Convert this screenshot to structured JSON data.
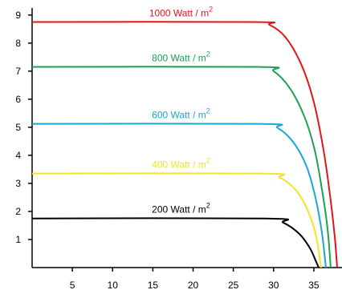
{
  "chart_data": {
    "type": "line",
    "title": "",
    "xlabel": "",
    "ylabel": "",
    "xlim": [
      0,
      38.5
    ],
    "ylim": [
      0,
      9.25
    ],
    "x_ticks": [
      5,
      10,
      15,
      20,
      25,
      30,
      35
    ],
    "y_ticks": [
      1,
      2,
      3,
      4,
      5,
      6,
      7,
      8,
      9
    ],
    "grid": false,
    "legend": "none",
    "series": [
      {
        "name": "1000 Watt / m",
        "unit_sup": "2",
        "color": "#e0161b",
        "points": [
          [
            0,
            8.75
          ],
          [
            27.5,
            8.75
          ],
          [
            29.5,
            8.65
          ],
          [
            31.5,
            8.2
          ],
          [
            33.5,
            7.2
          ],
          [
            35,
            5.9
          ],
          [
            36.2,
            4.2
          ],
          [
            37,
            2.6
          ],
          [
            37.6,
            1.1
          ],
          [
            37.9,
            0
          ]
        ]
      },
      {
        "name": "800 Watt / m",
        "unit_sup": "2",
        "color": "#1fa055",
        "points": [
          [
            0,
            7.15
          ],
          [
            28,
            7.15
          ],
          [
            30,
            7.0
          ],
          [
            32,
            6.4
          ],
          [
            33.8,
            5.4
          ],
          [
            35.1,
            4.2
          ],
          [
            36,
            2.8
          ],
          [
            36.7,
            1.4
          ],
          [
            37.1,
            0
          ]
        ]
      },
      {
        "name": "600 Watt / m",
        "unit_sup": "2",
        "color": "#1ba7d6",
        "points": [
          [
            0,
            5.12
          ],
          [
            28.3,
            5.12
          ],
          [
            30.5,
            4.98
          ],
          [
            32.5,
            4.45
          ],
          [
            34.1,
            3.6
          ],
          [
            35.2,
            2.5
          ],
          [
            36,
            1.25
          ],
          [
            36.5,
            0
          ]
        ]
      },
      {
        "name": "400 Watt / m",
        "unit_sup": "2",
        "color": "#f3e428",
        "points": [
          [
            0,
            3.35
          ],
          [
            28.5,
            3.35
          ],
          [
            30.8,
            3.2
          ],
          [
            32.8,
            2.75
          ],
          [
            34.3,
            2.0
          ],
          [
            35.3,
            1.1
          ],
          [
            35.9,
            0
          ]
        ]
      },
      {
        "name": "200 Watt / m",
        "unit_sup": "2",
        "color": "#000000",
        "points": [
          [
            0,
            1.75
          ],
          [
            29,
            1.75
          ],
          [
            31.2,
            1.6
          ],
          [
            33.2,
            1.2
          ],
          [
            34.5,
            0.7
          ],
          [
            35.3,
            0.2
          ],
          [
            35.6,
            0
          ]
        ]
      }
    ]
  }
}
